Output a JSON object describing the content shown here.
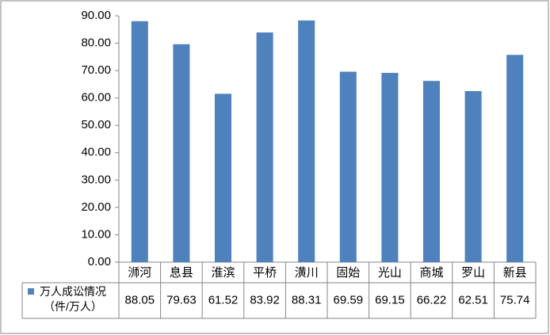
{
  "chart_data": {
    "type": "bar",
    "categories": [
      "浉河",
      "息县",
      "淮滨",
      "平桥",
      "潢川",
      "固始",
      "光山",
      "商城",
      "罗山",
      "新县"
    ],
    "series": [
      {
        "name": "万人成讼情况（件/万人）",
        "color": "#4f81bd",
        "values": [
          88.05,
          79.63,
          61.52,
          83.92,
          88.31,
          69.59,
          69.15,
          66.22,
          62.51,
          75.74
        ]
      }
    ],
    "ylim": [
      0,
      90
    ],
    "yticks": [
      {
        "value": 0,
        "label": "0.00"
      },
      {
        "value": 10,
        "label": "10.00"
      },
      {
        "value": 20,
        "label": "20.00"
      },
      {
        "value": 30,
        "label": "30.00"
      },
      {
        "value": 40,
        "label": "40.00"
      },
      {
        "value": 50,
        "label": "50.00"
      },
      {
        "value": 60,
        "label": "60.00"
      },
      {
        "value": 70,
        "label": "70.00"
      },
      {
        "value": 80,
        "label": "80.00"
      },
      {
        "value": 90,
        "label": "90.00"
      }
    ],
    "grid": false,
    "data_table": true
  }
}
